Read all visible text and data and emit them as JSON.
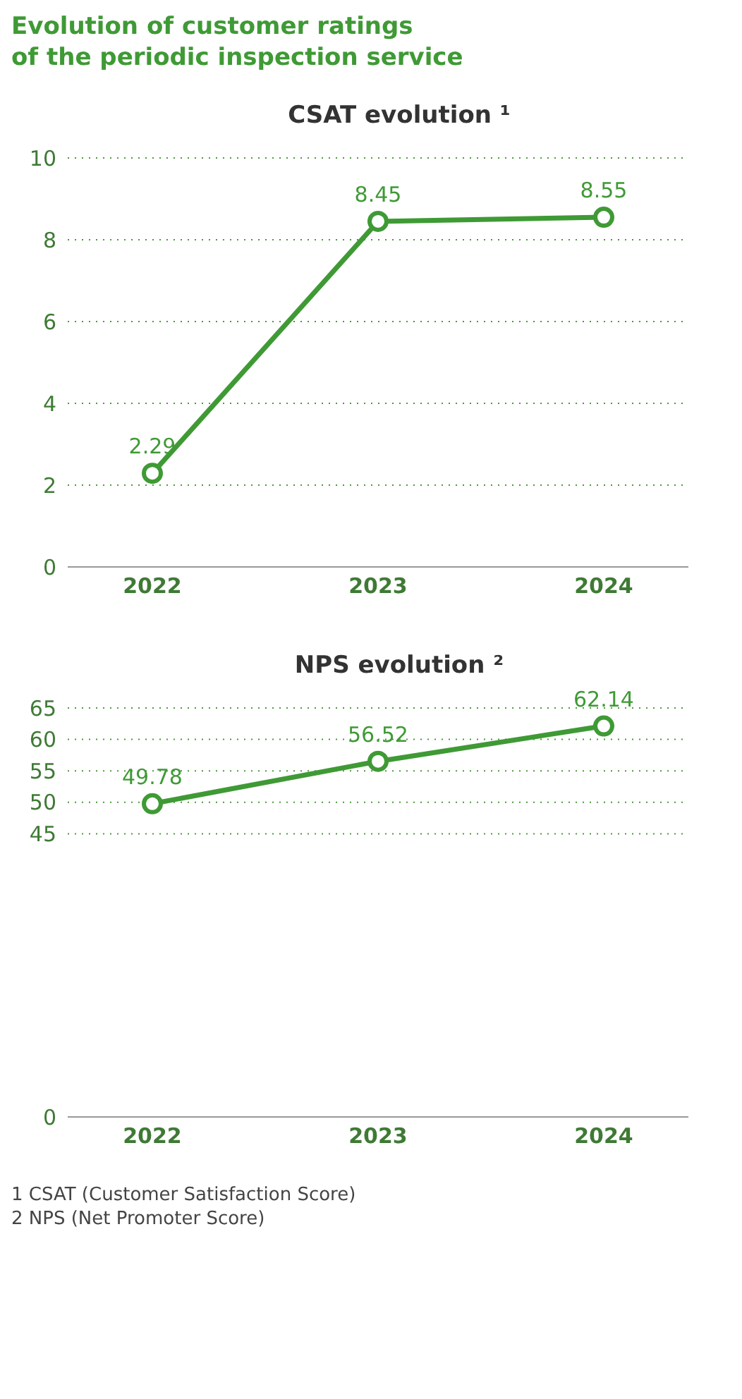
{
  "chart_data": [
    {
      "type": "line",
      "title": "Evolution of customer ratings\nof the periodic inspection service",
      "subtitle": "CSAT evolution ¹",
      "categories": [
        "2022",
        "2023",
        "2024"
      ],
      "series": [
        {
          "color": "#3f9a35",
          "values": [
            2.29,
            8.45,
            8.55
          ]
        }
      ],
      "ylim": [
        0,
        10
      ],
      "yticks": [
        0,
        2,
        4,
        6,
        8,
        10
      ],
      "grid": "y",
      "marker": "circle",
      "line_style": "solid",
      "data_labels": true
    },
    {
      "type": "line",
      "subtitle": "NPS evolution ²",
      "categories": [
        "2022",
        "2023",
        "2024"
      ],
      "series": [
        {
          "color": "#3f9a35",
          "values": [
            49.78,
            56.52,
            62.14
          ]
        }
      ],
      "ylim": [
        0,
        65
      ],
      "yticks": [
        0,
        45,
        50,
        55,
        60,
        65
      ],
      "grid": "y",
      "marker": "circle",
      "line_style": "solid",
      "data_labels": true,
      "annotations": [
        "1  CSAT (Customer Satisfaction Score)",
        "2  NPS (Net Promoter Score)"
      ]
    }
  ]
}
